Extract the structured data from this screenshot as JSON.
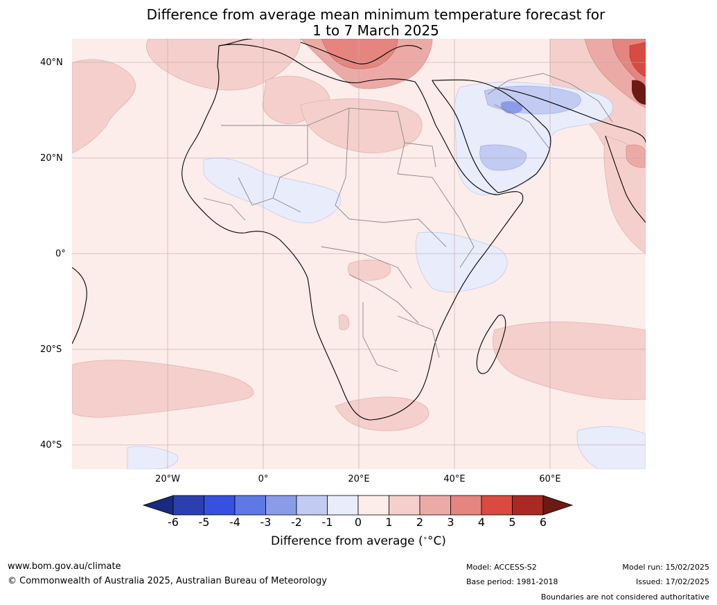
{
  "title_line1": "Difference from average mean minimum temperature forecast for",
  "title_line2": "1 to 7 March 2025",
  "lat_labels": [
    "40°N",
    "20°N",
    "0°",
    "20°S",
    "40°S"
  ],
  "lon_labels": [
    "20°W",
    "0°",
    "20°E",
    "40°E",
    "60°E"
  ],
  "colorbar": {
    "ticks": [
      "-6",
      "-5",
      "-4",
      "-3",
      "-2",
      "-1",
      "0",
      "1",
      "2",
      "3",
      "4",
      "5",
      "6"
    ],
    "colors": [
      "#1a2a80",
      "#2b3fb0",
      "#3650e0",
      "#5f78e6",
      "#8a9ce8",
      "#c2cbf2",
      "#e8ecfb",
      "#fcecea",
      "#f4cfcc",
      "#ecaaa6",
      "#e48580",
      "#d94a40",
      "#a82a22",
      "#6b1a14"
    ],
    "label": "Difference from average (",
    "label_unit": "°C)"
  },
  "footer": {
    "url": "www.bom.gov.au/climate",
    "copyright": "© Commonwealth of Australia 2025, Australian Bureau of Meteorology",
    "model": "Model: ACCESS-S2",
    "base_period": "Base period: 1981-2018",
    "model_run": "Model run: 15/02/2025",
    "issued": "Issued: 17/02/2025",
    "disclaimer": "Boundaries are not considered authoritative"
  }
}
